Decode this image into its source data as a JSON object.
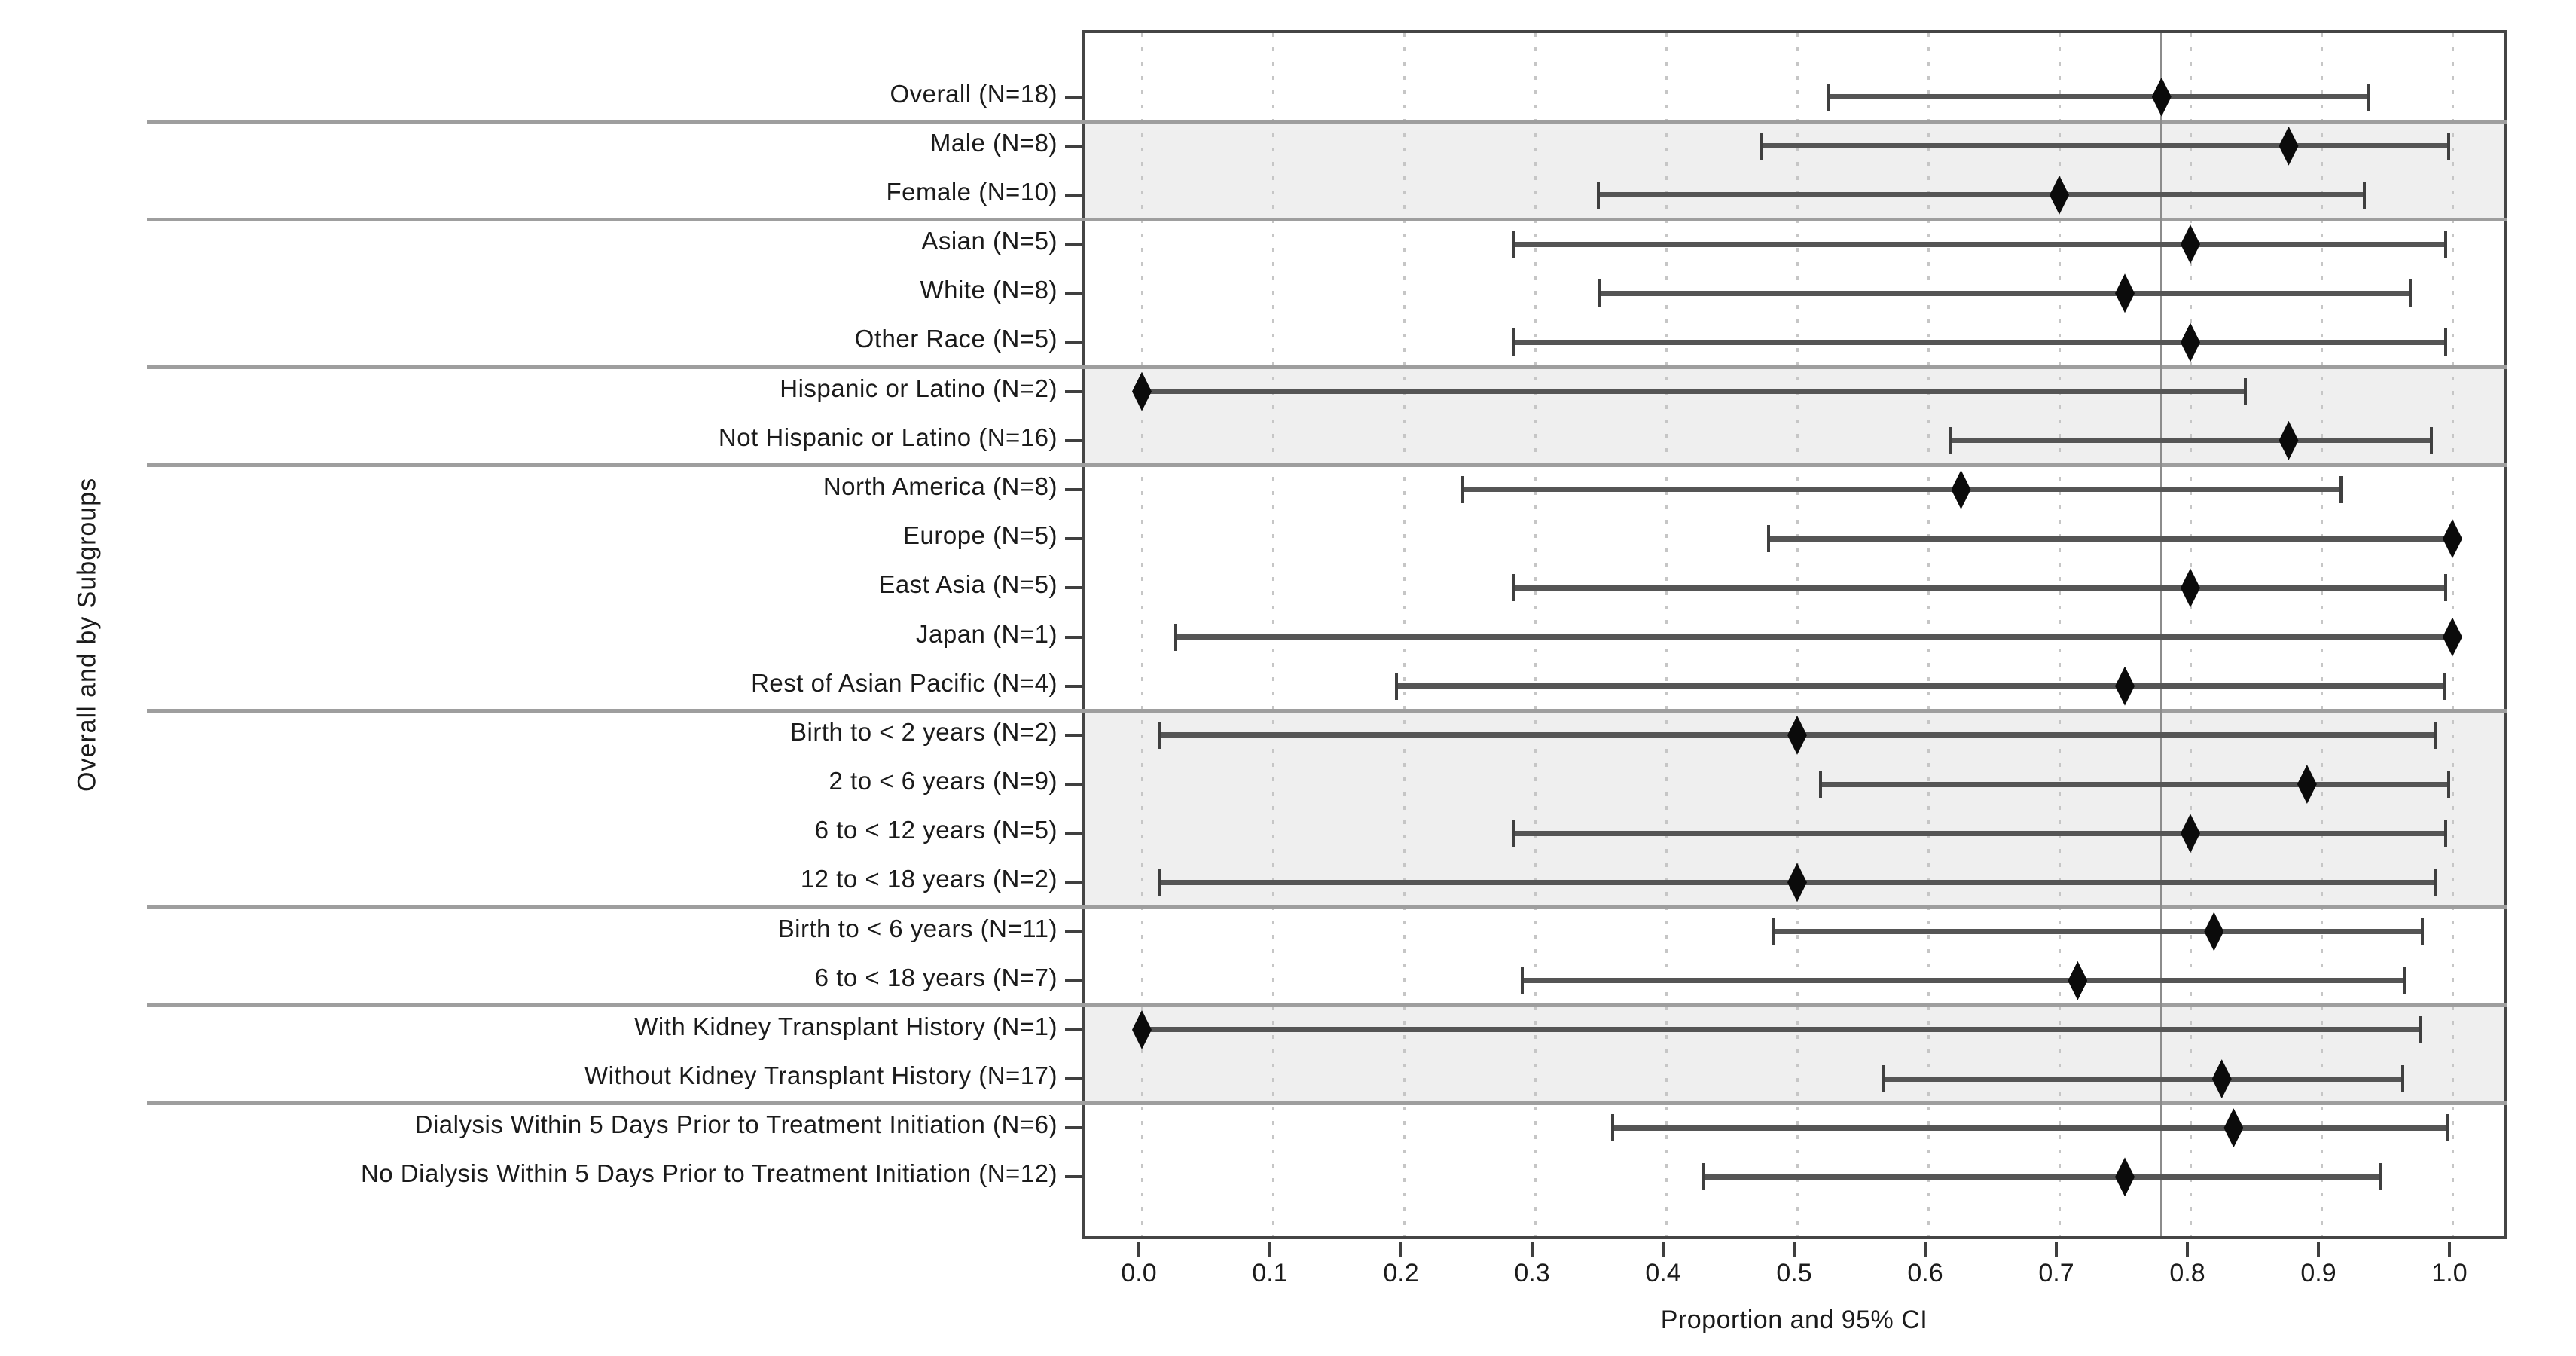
{
  "colors": {
    "background": "#ffffff",
    "shaded_band": "#efefef",
    "separator_line": "#9e9e9e",
    "plot_border": "#454545",
    "gridline": "#c6c6c6",
    "reference_line": "#8c8c8c",
    "ci_line": "#555555",
    "ci_cap": "#3f3f3f",
    "diamond": "#0b0b0b",
    "text": "#1b1b1b"
  },
  "chart_data": {
    "type": "scatter",
    "subtype": "forest-plot",
    "title": "",
    "xlabel": "Proportion and 95% CI",
    "ylabel": "Overall and by Subgroups",
    "xlim": [
      -0.043,
      1.044
    ],
    "x_ticks": [
      "0.0",
      "0.1",
      "0.2",
      "0.3",
      "0.4",
      "0.5",
      "0.6",
      "0.7",
      "0.8",
      "0.9",
      "1.0"
    ],
    "x_tick_values": [
      0.0,
      0.1,
      0.2,
      0.3,
      0.4,
      0.5,
      0.6,
      0.7,
      0.8,
      0.9,
      1.0
    ],
    "grid": "vertical dotted gridlines at each 0.1 from 0.0 to 1.0",
    "legend_position": "none",
    "marker_note": "black diamond = point estimate; gray horizontal bar with end caps = 95% CI",
    "reference_line_x": 0.778,
    "group_breaks_after": [
      0,
      2,
      5,
      7,
      12,
      16,
      18,
      20
    ],
    "rows": [
      {
        "label": "Overall (N=18)",
        "n": 18,
        "estimate": 0.778,
        "ci_low": 0.524,
        "ci_high": 0.936,
        "shaded": false
      },
      {
        "label": "Male (N=8)",
        "n": 8,
        "estimate": 0.875,
        "ci_low": 0.473,
        "ci_high": 0.997,
        "shaded": true
      },
      {
        "label": "Female (N=10)",
        "n": 10,
        "estimate": 0.7,
        "ci_low": 0.348,
        "ci_high": 0.933,
        "shaded": true
      },
      {
        "label": "Asian (N=5)",
        "n": 5,
        "estimate": 0.8,
        "ci_low": 0.284,
        "ci_high": 0.995,
        "shaded": false
      },
      {
        "label": "White (N=8)",
        "n": 8,
        "estimate": 0.75,
        "ci_low": 0.349,
        "ci_high": 0.968,
        "shaded": false
      },
      {
        "label": "Other Race (N=5)",
        "n": 5,
        "estimate": 0.8,
        "ci_low": 0.284,
        "ci_high": 0.995,
        "shaded": false
      },
      {
        "label": "Hispanic or Latino (N=2)",
        "n": 2,
        "estimate": 0.0,
        "ci_low": 0.0,
        "ci_high": 0.842,
        "shaded": true
      },
      {
        "label": "Not Hispanic or Latino (N=16)",
        "n": 16,
        "estimate": 0.875,
        "ci_low": 0.617,
        "ci_high": 0.984,
        "shaded": true
      },
      {
        "label": "North America (N=8)",
        "n": 8,
        "estimate": 0.625,
        "ci_low": 0.245,
        "ci_high": 0.915,
        "shaded": false
      },
      {
        "label": "Europe (N=5)",
        "n": 5,
        "estimate": 1.0,
        "ci_low": 0.478,
        "ci_high": 1.0,
        "shaded": false
      },
      {
        "label": "East Asia (N=5)",
        "n": 5,
        "estimate": 0.8,
        "ci_low": 0.284,
        "ci_high": 0.995,
        "shaded": false
      },
      {
        "label": "Japan (N=1)",
        "n": 1,
        "estimate": 1.0,
        "ci_low": 0.025,
        "ci_high": 1.0,
        "shaded": false
      },
      {
        "label": "Rest of Asian Pacific (N=4)",
        "n": 4,
        "estimate": 0.75,
        "ci_low": 0.194,
        "ci_high": 0.994,
        "shaded": false
      },
      {
        "label": "Birth to < 2 years (N=2)",
        "n": 2,
        "estimate": 0.5,
        "ci_low": 0.013,
        "ci_high": 0.987,
        "shaded": true
      },
      {
        "label": "2 to < 6 years (N=9)",
        "n": 9,
        "estimate": 0.889,
        "ci_low": 0.518,
        "ci_high": 0.997,
        "shaded": true
      },
      {
        "label": "6 to < 12 years (N=5)",
        "n": 5,
        "estimate": 0.8,
        "ci_low": 0.284,
        "ci_high": 0.995,
        "shaded": true
      },
      {
        "label": "12 to < 18 years (N=2)",
        "n": 2,
        "estimate": 0.5,
        "ci_low": 0.013,
        "ci_high": 0.987,
        "shaded": true
      },
      {
        "label": "Birth to < 6 years (N=11)",
        "n": 11,
        "estimate": 0.818,
        "ci_low": 0.482,
        "ci_high": 0.977,
        "shaded": false
      },
      {
        "label": "6 to < 18 years (N=7)",
        "n": 7,
        "estimate": 0.714,
        "ci_low": 0.29,
        "ci_high": 0.963,
        "shaded": false
      },
      {
        "label": "With Kidney Transplant History (N=1)",
        "n": 1,
        "estimate": 0.0,
        "ci_low": 0.0,
        "ci_high": 0.975,
        "shaded": true
      },
      {
        "label": "Without Kidney Transplant History (N=17)",
        "n": 17,
        "estimate": 0.824,
        "ci_low": 0.566,
        "ci_high": 0.962,
        "shaded": true
      },
      {
        "label": "Dialysis Within 5 Days Prior to Treatment Initiation (N=6)",
        "n": 6,
        "estimate": 0.833,
        "ci_low": 0.359,
        "ci_high": 0.996,
        "shaded": false
      },
      {
        "label": "No Dialysis Within 5 Days Prior to Treatment Initiation (N=12)",
        "n": 12,
        "estimate": 0.75,
        "ci_low": 0.428,
        "ci_high": 0.945,
        "shaded": false
      }
    ]
  }
}
